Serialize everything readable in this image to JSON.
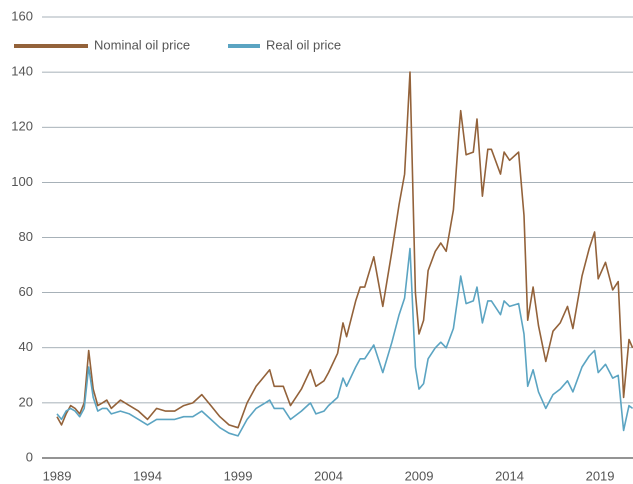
{
  "chart_data": {
    "type": "line",
    "x": [
      1989,
      1989.25,
      1989.5,
      1989.75,
      1990,
      1990.25,
      1990.5,
      1990.75,
      1991,
      1991.25,
      1991.5,
      1991.75,
      1992,
      1992.5,
      1993,
      1993.5,
      1994,
      1994.5,
      1995,
      1995.5,
      1996,
      1996.5,
      1997,
      1997.5,
      1998,
      1998.5,
      1999,
      1999.5,
      2000,
      2000.5,
      2000.75,
      2001,
      2001.5,
      2001.9,
      2002.5,
      2003,
      2003.3,
      2003.75,
      2004,
      2004.5,
      2004.8,
      2005,
      2005.5,
      2005.75,
      2006,
      2006.5,
      2007,
      2007.5,
      2007.9,
      2008.2,
      2008.5,
      2008.8,
      2009,
      2009.25,
      2009.5,
      2009.9,
      2010.2,
      2010.5,
      2010.9,
      2011.2,
      2011.3,
      2011.6,
      2012,
      2012.2,
      2012.5,
      2012.8,
      2013,
      2013.5,
      2013.7,
      2014,
      2014.5,
      2014.8,
      2015,
      2015.3,
      2015.6,
      2016,
      2016.4,
      2016.8,
      2017.2,
      2017.5,
      2018,
      2018.4,
      2018.7,
      2018.9,
      2019.3,
      2019.7,
      2020,
      2020.3,
      2020.6,
      2020.8
    ],
    "series": [
      {
        "name": "Nominal oil price",
        "color": "#93623a",
        "values": [
          15,
          12,
          16,
          19,
          18,
          16,
          20,
          39,
          25,
          19,
          20,
          21,
          18,
          21,
          19,
          17,
          14,
          18,
          17,
          17,
          19,
          20,
          23,
          19,
          15,
          12,
          11,
          20,
          26,
          30,
          32,
          26,
          26,
          19,
          25,
          32,
          26,
          28,
          31,
          38,
          49,
          44,
          57,
          62,
          62,
          73,
          55,
          75,
          92,
          103,
          140,
          60,
          45,
          50,
          68,
          75,
          78,
          75,
          90,
          118,
          126,
          110,
          111,
          123,
          95,
          112,
          112,
          103,
          111,
          108,
          111,
          88,
          50,
          62,
          48,
          35,
          46,
          49,
          55,
          47,
          66,
          76,
          82,
          65,
          71,
          61,
          64,
          22,
          43,
          40
        ]
      },
      {
        "name": "Real oil price",
        "color": "#5ba4c2",
        "values": [
          16,
          14,
          17,
          18,
          17,
          15,
          18,
          33,
          22,
          17,
          18,
          18,
          16,
          17,
          16,
          14,
          12,
          14,
          14,
          14,
          15,
          15,
          17,
          14,
          11,
          9,
          8,
          14,
          18,
          20,
          21,
          18,
          18,
          14,
          17,
          20,
          16,
          17,
          19,
          22,
          29,
          26,
          33,
          36,
          36,
          41,
          31,
          42,
          52,
          58,
          76,
          33,
          25,
          27,
          36,
          40,
          42,
          40,
          47,
          61,
          66,
          56,
          57,
          62,
          49,
          57,
          57,
          52,
          57,
          55,
          56,
          45,
          26,
          32,
          24,
          18,
          23,
          25,
          28,
          24,
          33,
          37,
          39,
          31,
          34,
          29,
          30,
          10,
          19,
          18
        ]
      }
    ],
    "xlim": [
      1988.17,
      2020.82
    ],
    "xticks": [
      1989,
      1994,
      1999,
      2004,
      2009,
      2014,
      2019
    ],
    "ylim": [
      0,
      160
    ],
    "yticks": [
      0,
      20,
      40,
      60,
      80,
      100,
      120,
      140,
      160
    ],
    "grid": true
  }
}
